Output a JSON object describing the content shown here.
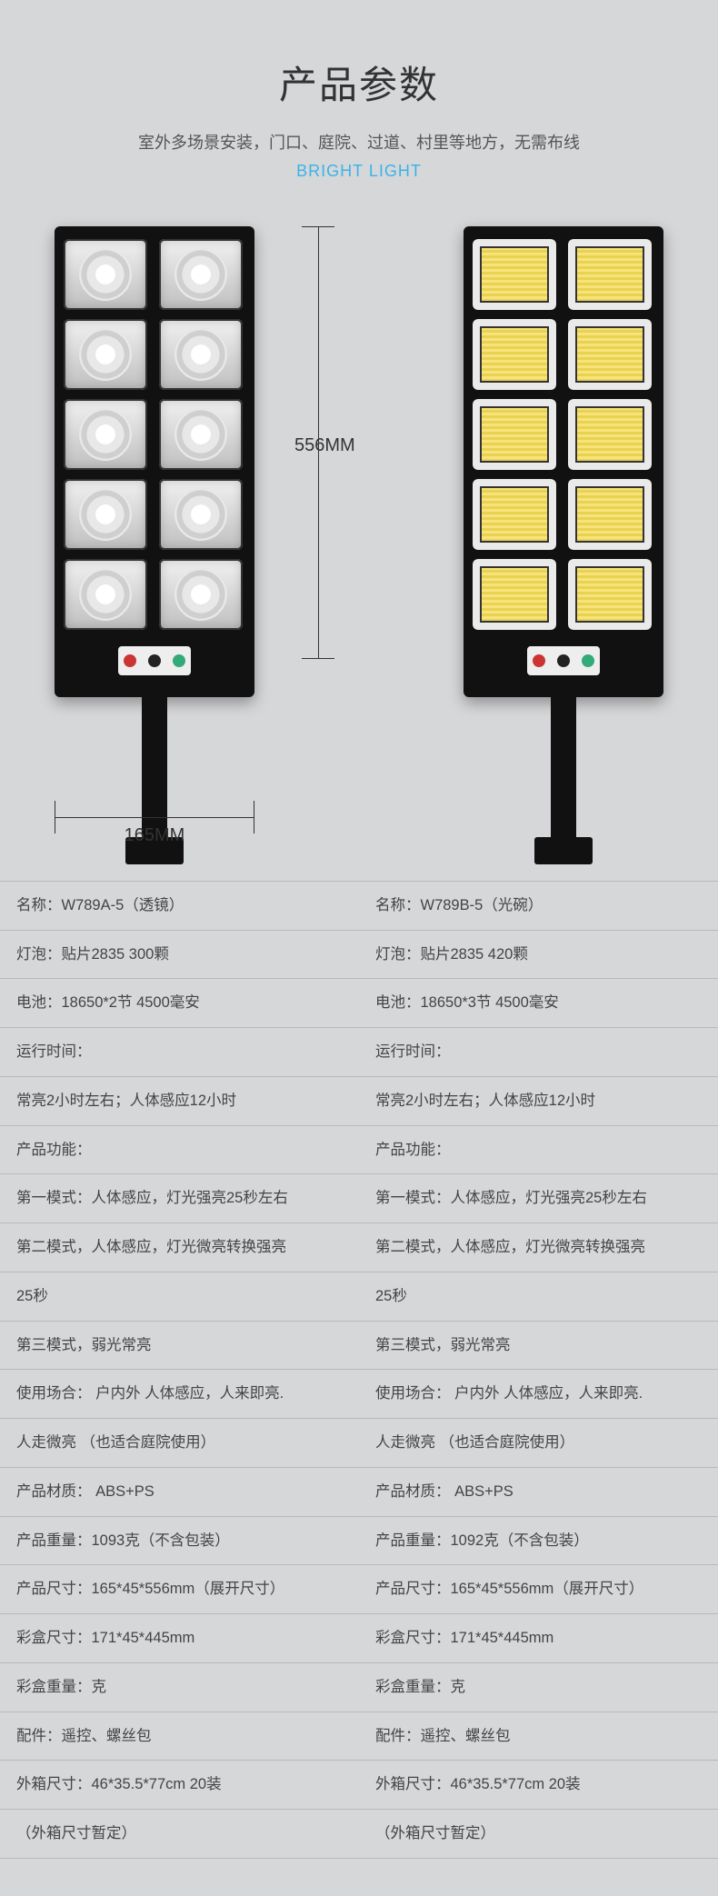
{
  "header": {
    "title": "产品参数",
    "subtitle": "室外多场景安装，门口、庭院、过道、村里等地方，无需布线",
    "bright": "BRIGHT LIGHT"
  },
  "dimensions": {
    "height_label": "556MM",
    "width_label": "165MM"
  },
  "colors": {
    "background": "#d6d7d9",
    "title": "#333333",
    "subtitle": "#555555",
    "accent": "#3bb3e8",
    "text": "#444444",
    "border": "#b8b9bb",
    "lamp_body": "#111111"
  },
  "product_figure": {
    "variant_a": {
      "cells": 10,
      "style": "lens"
    },
    "variant_b": {
      "cells": 10,
      "style": "led-array"
    }
  },
  "spec_rows": [
    {
      "l": "名称：W789A-5（透镜）",
      "r": "名称：W789B-5（光碗）"
    },
    {
      "l": "灯泡：贴片2835 300颗",
      "r": "灯泡：贴片2835 420颗"
    },
    {
      "l": "电池：18650*2节 4500毫安",
      "r": "电池：18650*3节 4500毫安"
    },
    {
      "l": "运行时间：",
      "r": "运行时间："
    },
    {
      "l": "常亮2小时左右；人体感应12小时",
      "r": "常亮2小时左右；人体感应12小时"
    },
    {
      "l": "产品功能：",
      "r": "产品功能："
    },
    {
      "l": "第一模式：人体感应，灯光强亮25秒左右",
      "r": "第一模式：人体感应，灯光强亮25秒左右"
    },
    {
      "l": "第二模式，人体感应，灯光微亮转换强亮",
      "r": "第二模式，人体感应，灯光微亮转换强亮"
    },
    {
      "l": "25秒",
      "r": "25秒"
    },
    {
      "l": "第三模式，弱光常亮",
      "r": "第三模式，弱光常亮"
    },
    {
      "l": "使用场合： 户内外 人体感应，人来即亮.",
      "r": "使用场合： 户内外 人体感应，人来即亮."
    },
    {
      "l": "人走微亮 （也适合庭院使用）",
      "r": "人走微亮 （也适合庭院使用）"
    },
    {
      "l": "产品材质： ABS+PS",
      "r": "产品材质： ABS+PS"
    },
    {
      "l": "产品重量：1093克（不含包装）",
      "r": "产品重量：1092克（不含包装）"
    },
    {
      "l": "产品尺寸：165*45*556mm（展开尺寸）",
      "r": "产品尺寸：165*45*556mm（展开尺寸）"
    },
    {
      "l": "彩盒尺寸：171*45*445mm",
      "r": "彩盒尺寸：171*45*445mm"
    },
    {
      "l": "彩盒重量：克",
      "r": "彩盒重量：克"
    },
    {
      "l": "配件：遥控、螺丝包",
      "r": "配件：遥控、螺丝包"
    },
    {
      "l": "外箱尺寸：46*35.5*77cm 20装",
      "r": "外箱尺寸：46*35.5*77cm 20装"
    },
    {
      "l": "（外箱尺寸暂定）",
      "r": "（外箱尺寸暂定）"
    }
  ]
}
